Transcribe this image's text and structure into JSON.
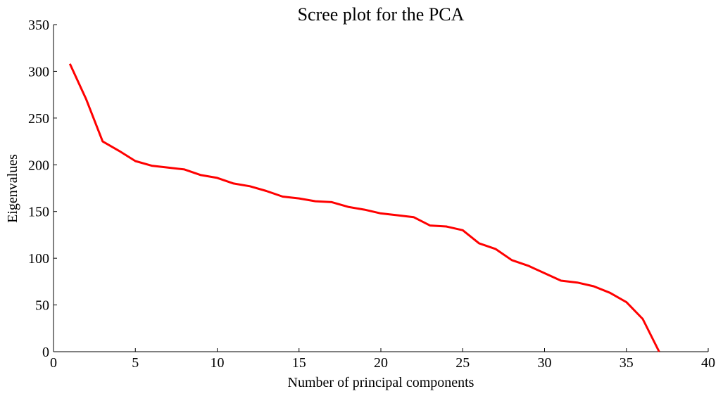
{
  "chart_data": {
    "type": "line",
    "title": "Scree plot for the PCA",
    "xlabel": "Number of principal components",
    "ylabel": "Eigenvalues",
    "xlim": [
      0,
      40
    ],
    "ylim": [
      0,
      350
    ],
    "xticks": [
      0,
      5,
      10,
      15,
      20,
      25,
      30,
      35,
      40
    ],
    "yticks": [
      0,
      50,
      100,
      150,
      200,
      250,
      300,
      350
    ],
    "grid": false,
    "series": [
      {
        "color": "#ff0000",
        "x": [
          1,
          2,
          3,
          4,
          5,
          6,
          7,
          8,
          9,
          10,
          11,
          12,
          13,
          14,
          15,
          16,
          17,
          18,
          19,
          20,
          21,
          22,
          23,
          24,
          25,
          26,
          27,
          28,
          29,
          30,
          31,
          32,
          33,
          34,
          35,
          36,
          37
        ],
        "values": [
          308,
          270,
          225,
          215,
          204,
          199,
          197,
          195,
          189,
          186,
          180,
          177,
          172,
          166,
          164,
          161,
          160,
          155,
          152,
          148,
          146,
          144,
          135,
          134,
          130,
          116,
          110,
          98,
          92,
          84,
          76,
          74,
          70,
          63,
          53,
          35,
          0
        ]
      }
    ]
  }
}
